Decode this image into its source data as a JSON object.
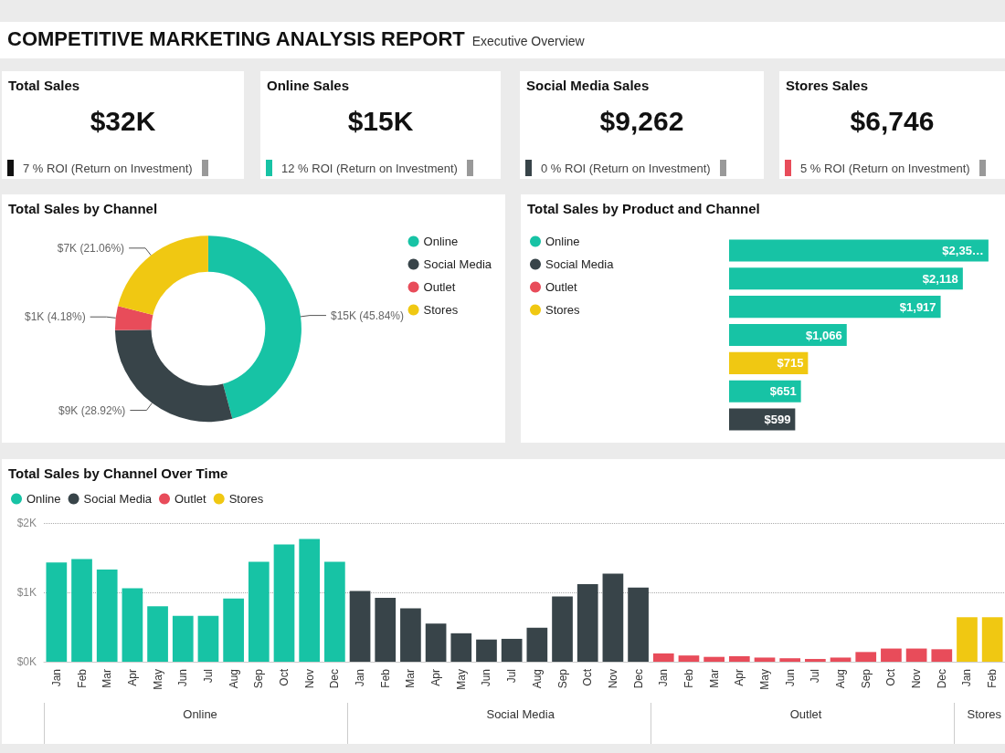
{
  "chart_data": [
    {
      "type": "other",
      "title": "COMPETITIVE MARKETING ANALYSIS REPORT",
      "subtitle": "Executive Overview"
    },
    {
      "type": "other",
      "title": "Total Sales",
      "annotations": [
        "$32K",
        "7 % ROI (Return on Investment)"
      ]
    },
    {
      "type": "other",
      "title": "Online Sales",
      "annotations": [
        "$15K",
        "12 % ROI (Return on Investment)"
      ]
    },
    {
      "type": "other",
      "title": "Social Media Sales",
      "annotations": [
        "$9,262",
        "0 % ROI (Return on Investment)"
      ]
    },
    {
      "type": "other",
      "title": "Stores Sales",
      "annotations": [
        "$6,746",
        "5 % ROI (Return on Investment)"
      ]
    },
    {
      "type": "donut",
      "title": "Total Sales by Channel",
      "legend": "right",
      "categories": [
        "Online",
        "Social Media",
        "Outlet",
        "Stores"
      ],
      "values": [
        45.84,
        28.92,
        4.18,
        21.06
      ],
      "colors": [
        "#17c3a5",
        "#384449",
        "#e84c5a",
        "#f0c812"
      ],
      "value_labels": [
        "$15K (45.84%)",
        "$9K (28.92%)",
        "$1K (4.18%)",
        "$7K (21.06%)"
      ]
    },
    {
      "type": "bar",
      "title": "Total Sales by Product and Channel",
      "orientation": "horizontal",
      "stacked": true,
      "legend": "left",
      "categories": [
        null,
        null,
        null,
        null,
        null,
        null,
        null
      ],
      "series": [
        {
          "name": "Online",
          "color": "#17c3a5",
          "values": [
            2350,
            2118,
            1917,
            1066,
            null,
            651,
            null
          ],
          "value_labels": [
            "$2,35…",
            "$2,118",
            "$1,917",
            "$1,066",
            null,
            "$651",
            null
          ]
        },
        {
          "name": "Social Media",
          "color": "#384449",
          "values": [
            null,
            null,
            null,
            null,
            null,
            null,
            599
          ],
          "value_labels": [
            null,
            null,
            null,
            null,
            null,
            null,
            "$599"
          ]
        },
        {
          "name": "Outlet",
          "color": "#e84c5a",
          "values": [
            null,
            null,
            null,
            null,
            null,
            null,
            null
          ]
        },
        {
          "name": "Stores",
          "color": "#f0c812",
          "values": [
            null,
            null,
            null,
            null,
            715,
            null,
            null
          ],
          "value_labels": [
            null,
            null,
            null,
            null,
            "$715",
            null,
            null
          ]
        }
      ]
    },
    {
      "type": "bar",
      "title": "Total Sales by Channel Over Time",
      "stacked": true,
      "legend": "top left",
      "grid": "y",
      "ylim": [
        0,
        2000
      ],
      "yticks": [
        {
          "value": 0,
          "label": "$0K"
        },
        {
          "value": 1000,
          "label": "$1K"
        },
        {
          "value": 2000,
          "label": "$2K"
        }
      ],
      "categories": [
        "Jan",
        "Feb",
        "Mar",
        "Apr",
        "May",
        "Jun",
        "Jul",
        "Aug",
        "Sep",
        "Oct",
        "Nov",
        "Dec",
        "Jan",
        "Feb",
        "Mar",
        "Apr",
        "May",
        "Jun",
        "Jul",
        "Aug",
        "Sep",
        "Oct",
        "Nov",
        "Dec",
        "Jan",
        "Feb",
        "Mar",
        "Apr",
        "May",
        "Jun",
        "Jul",
        "Aug",
        "Sep",
        "Oct",
        "Nov",
        "Dec",
        "Jan",
        "Feb"
      ],
      "series": [
        {
          "name": "Online",
          "color": "#17c3a5",
          "values": [
            1430,
            1480,
            1330,
            1060,
            800,
            660,
            660,
            910,
            1440,
            1690,
            1770,
            1440,
            null,
            null,
            null,
            null,
            null,
            null,
            null,
            null,
            null,
            null,
            null,
            null,
            null,
            null,
            null,
            null,
            null,
            null,
            null,
            null,
            null,
            null,
            null,
            null,
            null,
            null
          ]
        },
        {
          "name": "Social Media",
          "color": "#384449",
          "values": [
            null,
            null,
            null,
            null,
            null,
            null,
            null,
            null,
            null,
            null,
            null,
            null,
            1020,
            920,
            770,
            550,
            410,
            320,
            330,
            490,
            940,
            1120,
            1270,
            1070,
            null,
            null,
            null,
            null,
            null,
            null,
            null,
            null,
            null,
            null,
            null,
            null,
            null,
            null
          ]
        },
        {
          "name": "Outlet",
          "color": "#e84c5a",
          "values": [
            null,
            null,
            null,
            null,
            null,
            null,
            null,
            null,
            null,
            null,
            null,
            null,
            null,
            null,
            null,
            null,
            null,
            null,
            null,
            null,
            null,
            null,
            null,
            null,
            120,
            90,
            70,
            80,
            60,
            50,
            40,
            60,
            140,
            190,
            190,
            180,
            null,
            null
          ]
        },
        {
          "name": "Stores",
          "color": "#f0c812",
          "values": [
            null,
            null,
            null,
            null,
            null,
            null,
            null,
            null,
            null,
            null,
            null,
            null,
            null,
            null,
            null,
            null,
            null,
            null,
            null,
            null,
            null,
            null,
            null,
            null,
            null,
            null,
            null,
            null,
            null,
            null,
            null,
            null,
            null,
            null,
            null,
            null,
            640,
            640
          ]
        }
      ]
    }
  ]
}
